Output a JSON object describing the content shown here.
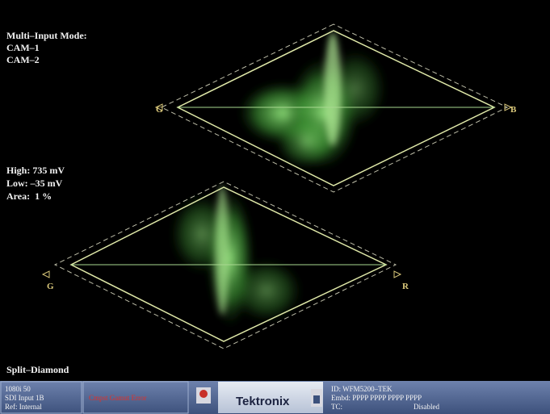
{
  "mode": {
    "title": "Multi–Input Mode:",
    "inputs": [
      "CAM–1",
      "CAM–2"
    ]
  },
  "limits": [
    "High: 735 mV",
    "Low: –35 mV",
    "Area:  1 %"
  ],
  "diamonds": [
    {
      "left": "G",
      "right": "B"
    },
    {
      "left": "G",
      "right": "R"
    }
  ],
  "display_name": "Split–Diamond",
  "status_bar": {
    "format": "1080i 50",
    "input": "SDI Input 1B",
    "ref": "Ref: Internal",
    "error": "Cmpst Gamut Error",
    "brand": "Tektronix",
    "id": "ID: WFM5200–TEK",
    "embd": "Embd: PPPP PPPP PPPP PPPP",
    "tc": "TC:",
    "tc_value": "Disabled"
  }
}
